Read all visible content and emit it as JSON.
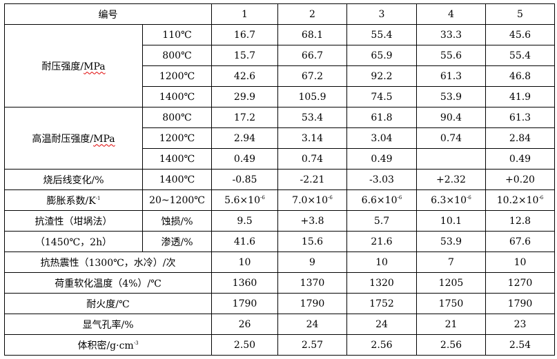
{
  "table": {
    "rows": [
      [
        {
          "t": "编号",
          "cs": 2
        },
        {
          "t": "1"
        },
        {
          "t": "2"
        },
        {
          "t": "3"
        },
        {
          "t": "4"
        },
        {
          "t": "5"
        }
      ],
      [
        {
          "t": "耐压强度/",
          "u": "MPa",
          "rs": 4
        },
        {
          "t": "110℃"
        },
        {
          "t": "16.7"
        },
        {
          "t": "68.1"
        },
        {
          "t": "55.4"
        },
        {
          "t": "33.3"
        },
        {
          "t": "45.6"
        }
      ],
      [
        {
          "t": "800℃"
        },
        {
          "t": "15.7"
        },
        {
          "t": "66.7"
        },
        {
          "t": "65.9"
        },
        {
          "t": "55.6"
        },
        {
          "t": "55.4"
        }
      ],
      [
        {
          "t": "1200℃"
        },
        {
          "t": "42.6"
        },
        {
          "t": "67.2"
        },
        {
          "t": "92.2"
        },
        {
          "t": "61.3"
        },
        {
          "t": "46.8"
        }
      ],
      [
        {
          "t": "1400℃"
        },
        {
          "t": "29.9"
        },
        {
          "t": "105.9"
        },
        {
          "t": "74.5"
        },
        {
          "t": "53.9"
        },
        {
          "t": "41.9"
        }
      ],
      [
        {
          "t": "高温耐压强度/",
          "u": "MPa",
          "rs": 3
        },
        {
          "t": "800℃"
        },
        {
          "t": "17.2"
        },
        {
          "t": "53.4"
        },
        {
          "t": "61.8"
        },
        {
          "t": "90.4"
        },
        {
          "t": "61.3"
        }
      ],
      [
        {
          "t": "1200℃"
        },
        {
          "t": "2.94"
        },
        {
          "t": "3.14"
        },
        {
          "t": "3.04"
        },
        {
          "t": "0.74"
        },
        {
          "t": "2.84"
        }
      ],
      [
        {
          "t": "1400℃"
        },
        {
          "t": "0.49"
        },
        {
          "t": "0.74"
        },
        {
          "t": "0.49"
        },
        {
          "t": ""
        },
        {
          "t": "0.49"
        }
      ],
      [
        {
          "t": "烧后线变化/%"
        },
        {
          "t": "1400℃"
        },
        {
          "t": "-0.85"
        },
        {
          "t": "-2.21"
        },
        {
          "t": "-3.03"
        },
        {
          "t": "+2.32"
        },
        {
          "t": "+0.20"
        }
      ],
      [
        {
          "t": "膨胀系数/K",
          "sup": "-1"
        },
        {
          "t": "20~1200℃"
        },
        {
          "t": "5.6×10",
          "sup": "-6"
        },
        {
          "t": "7.0×10",
          "sup": "-6"
        },
        {
          "t": "6.6×10",
          "sup": "-6"
        },
        {
          "t": "6.3×10",
          "sup": "-6"
        },
        {
          "t": "10.2×10",
          "sup": "-6"
        }
      ],
      [
        {
          "t": "抗渣性（坩埚法）"
        },
        {
          "t": "蚀损/%"
        },
        {
          "t": "9.5"
        },
        {
          "t": "+3.8"
        },
        {
          "t": "5.7"
        },
        {
          "t": "10.1"
        },
        {
          "t": "12.8"
        }
      ],
      [
        {
          "t": "（1450℃，2h）"
        },
        {
          "t": "渗透/%"
        },
        {
          "t": "41.6"
        },
        {
          "t": "15.6"
        },
        {
          "t": "21.6"
        },
        {
          "t": "53.9"
        },
        {
          "t": "67.6"
        }
      ],
      [
        {
          "t": "抗热震性（1300℃，水冷）/次",
          "cs": 2
        },
        {
          "t": "10"
        },
        {
          "t": "9"
        },
        {
          "t": "10"
        },
        {
          "t": "7"
        },
        {
          "t": "10"
        }
      ],
      [
        {
          "t": "荷重软化温度（4%）/℃",
          "cs": 2
        },
        {
          "t": "1360"
        },
        {
          "t": "1370"
        },
        {
          "t": "1320"
        },
        {
          "t": "1205"
        },
        {
          "t": "1270"
        }
      ],
      [
        {
          "t": "耐火度/℃",
          "cs": 2
        },
        {
          "t": "1790"
        },
        {
          "t": "1790"
        },
        {
          "t": "1752"
        },
        {
          "t": "1750"
        },
        {
          "t": "1790"
        }
      ],
      [
        {
          "t": "显气孔率/%",
          "cs": 2
        },
        {
          "t": "26"
        },
        {
          "t": "24"
        },
        {
          "t": "24"
        },
        {
          "t": "21"
        },
        {
          "t": "23"
        }
      ],
      [
        {
          "t": "体积密/g·cm",
          "sup": "-3",
          "cs": 2
        },
        {
          "t": "2.50"
        },
        {
          "t": "2.57"
        },
        {
          "t": "2.56"
        },
        {
          "t": "2.56"
        },
        {
          "t": "2.54"
        }
      ]
    ]
  }
}
